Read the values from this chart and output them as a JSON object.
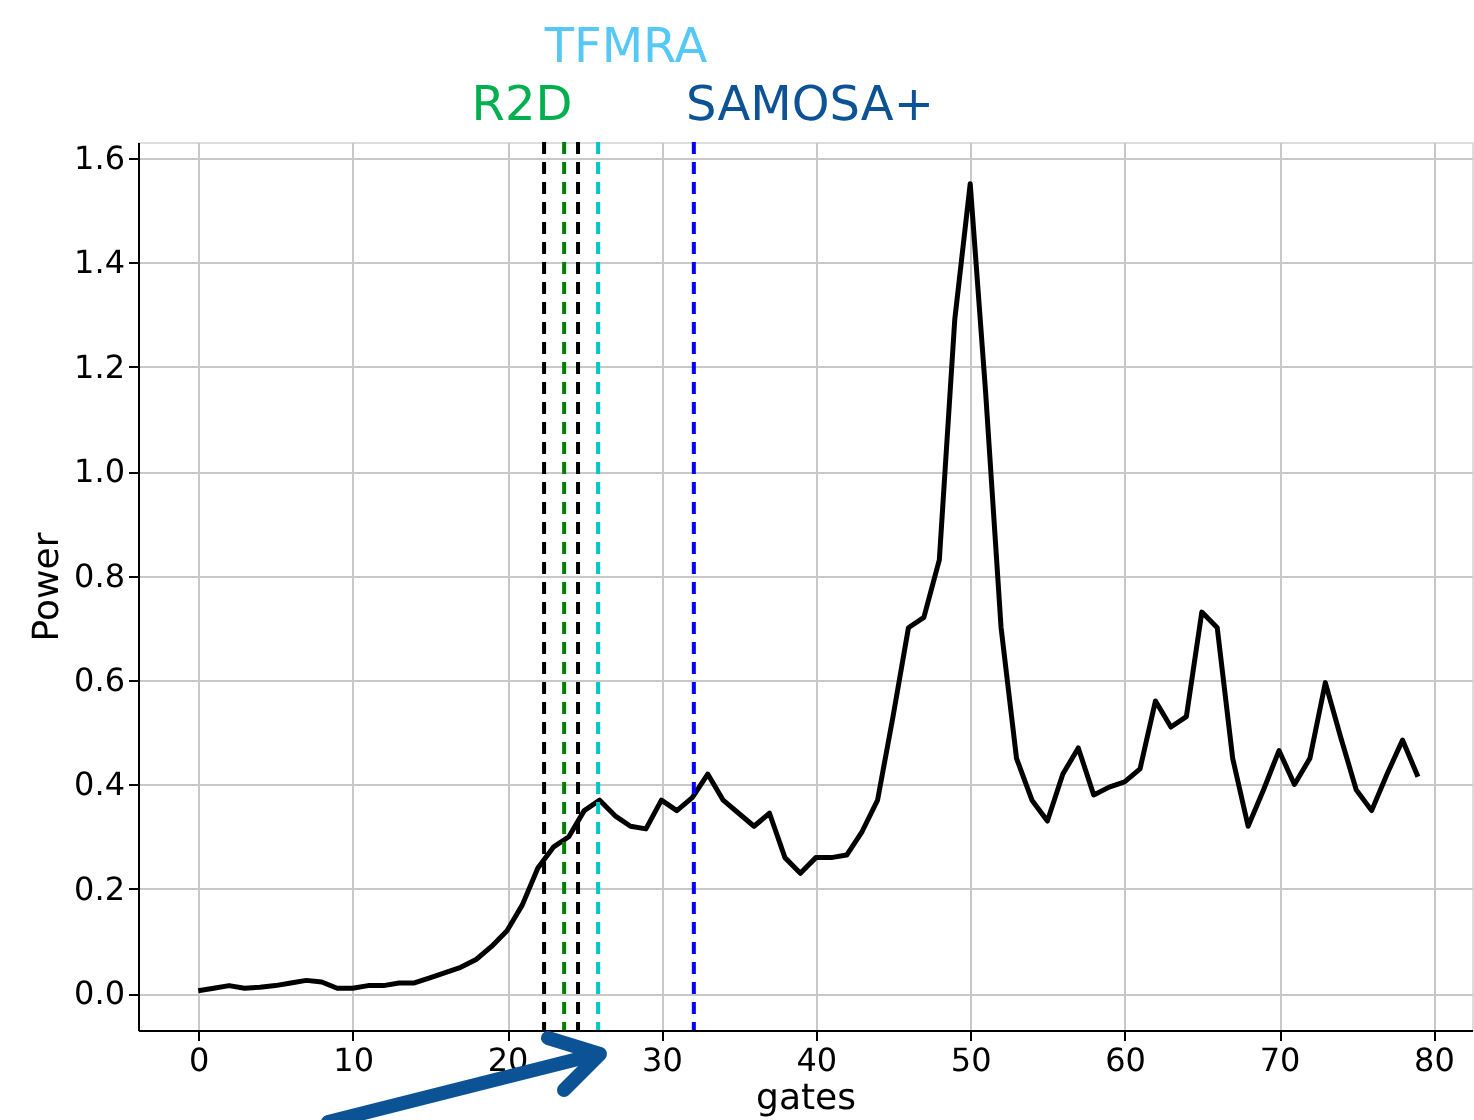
{
  "chart_data": {
    "type": "line",
    "xlabel": "gates",
    "ylabel": "Power",
    "x": [
      0,
      1,
      2,
      3,
      4,
      5,
      6,
      7,
      8,
      9,
      10,
      11,
      12,
      13,
      14,
      15,
      16,
      17,
      18,
      19,
      20,
      21,
      22,
      23,
      24,
      25,
      26,
      27,
      28,
      29,
      30,
      31,
      32,
      33,
      34,
      35,
      36,
      37,
      38,
      39,
      40,
      41,
      42,
      43,
      44,
      45,
      46,
      47,
      48,
      49,
      50,
      51,
      52,
      53,
      54,
      55,
      56,
      57,
      58,
      59,
      60,
      61,
      62,
      63,
      64,
      65,
      66,
      67,
      68,
      69,
      70,
      71,
      72,
      73,
      74,
      75,
      76,
      77,
      78,
      79
    ],
    "series": [
      {
        "color": "#000000",
        "values": [
          0.005,
          0.01,
          0.015,
          0.01,
          0.012,
          0.015,
          0.02,
          0.025,
          0.022,
          0.01,
          0.01,
          0.015,
          0.015,
          0.02,
          0.02,
          0.03,
          0.04,
          0.05,
          0.065,
          0.09,
          0.12,
          0.17,
          0.24,
          0.28,
          0.3,
          0.35,
          0.37,
          0.34,
          0.32,
          0.315,
          0.37,
          0.35,
          0.375,
          0.42,
          0.37,
          0.345,
          0.32,
          0.345,
          0.26,
          0.23,
          0.26,
          0.26,
          0.265,
          0.31,
          0.37,
          0.53,
          0.7,
          0.72,
          0.83,
          1.29,
          1.55,
          1.15,
          0.7,
          0.45,
          0.37,
          0.33,
          0.42,
          0.47,
          0.38,
          0.395,
          0.405,
          0.43,
          0.56,
          0.51,
          0.53,
          0.73,
          0.7,
          0.45,
          0.32,
          0.39,
          0.465,
          0.4,
          0.45,
          0.595,
          0.49,
          0.39,
          0.35,
          0.42,
          0.485,
          0.415
        ]
      }
    ],
    "xlim": [
      -3.9,
      82.5
    ],
    "ylim": [
      -0.07,
      1.63
    ],
    "xticks": [
      0,
      10,
      20,
      30,
      40,
      50,
      60,
      70,
      80
    ],
    "yticks": [
      {
        "value": 0,
        "label": "0.0"
      },
      {
        "value": 0.2,
        "label": "0.2"
      },
      {
        "value": 0.4,
        "label": "0.4"
      },
      {
        "value": 0.6,
        "label": "0.6"
      },
      {
        "value": 0.8,
        "label": "0.8"
      },
      {
        "value": 1.0,
        "label": "1.0"
      },
      {
        "value": 1.2,
        "label": "1.2"
      },
      {
        "value": 1.4,
        "label": "1.4"
      },
      {
        "value": 1.6,
        "label": "1.6"
      }
    ],
    "grid": true,
    "marker": "none",
    "line_style": "solid",
    "ref_lines": [
      {
        "axis": "x",
        "value": 22.4,
        "color": "#000000",
        "line_style": "dashed"
      },
      {
        "axis": "x",
        "value": 23.7,
        "color": "#008000",
        "line_style": "dashed"
      },
      {
        "axis": "x",
        "value": 24.6,
        "color": "#000000",
        "line_style": "dashed"
      },
      {
        "axis": "x",
        "value": 25.9,
        "color": "#00c8c8",
        "line_style": "dashed"
      },
      {
        "axis": "x",
        "value": 32.1,
        "color": "#0000ff",
        "line_style": "dashed"
      }
    ],
    "annotations": [
      "TFMRA",
      "R2D",
      "SAMOSA+"
    ]
  }
}
